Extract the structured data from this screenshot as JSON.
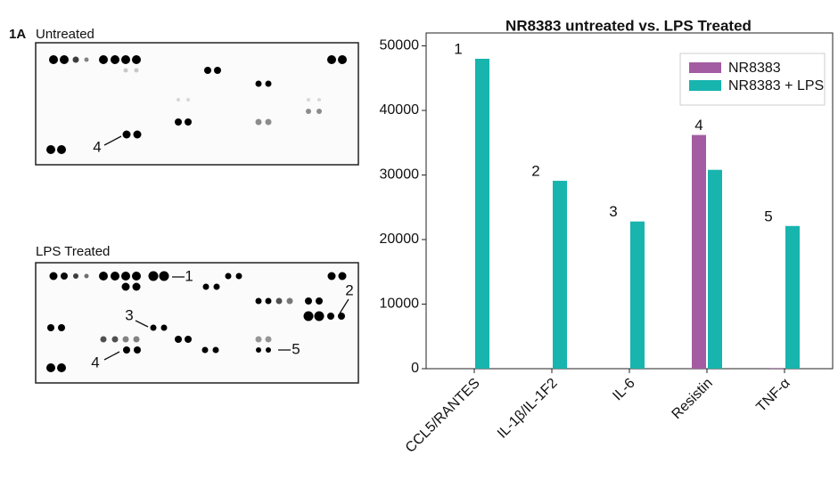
{
  "figure": {
    "panel": "1A",
    "blots": [
      {
        "title": "Untreated",
        "labels": [
          "4"
        ]
      },
      {
        "title": "LPS Treated",
        "labels": [
          "1",
          "2",
          "3",
          "4",
          "5"
        ]
      }
    ]
  },
  "chart_data": {
    "type": "bar",
    "title": "NR8383 untreated vs. LPS Treated",
    "categories": [
      "CCL5/RANTES",
      "IL-1β/IL-1F2",
      "IL-6",
      "Resistin",
      "TNF-α"
    ],
    "series": [
      {
        "name": "NR8383",
        "color": "#a35ca1",
        "values": [
          0,
          0,
          0,
          36200,
          100
        ]
      },
      {
        "name": "NR8383 + LPS",
        "color": "#18b4ae",
        "values": [
          48000,
          29100,
          22800,
          30800,
          22100
        ]
      }
    ],
    "annotations": [
      "1",
      "2",
      "3",
      "4",
      "5"
    ],
    "ylim": [
      0,
      52000
    ],
    "yticks": [
      0,
      10000,
      20000,
      30000,
      40000,
      50000
    ],
    "legend": "upper right"
  }
}
